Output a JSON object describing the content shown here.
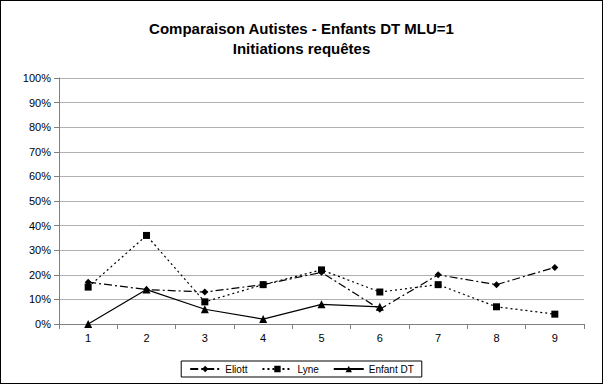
{
  "chart_data": {
    "type": "line",
    "title": "Comparaison Autistes - Enfants DT MLU=1\nInitiations requêtes",
    "categories": [
      "1",
      "2",
      "3",
      "4",
      "5",
      "6",
      "7",
      "8",
      "9"
    ],
    "series": [
      {
        "name": "Eliott",
        "color": "#000000",
        "marker": "diamond",
        "line_style": "dashdot",
        "values": [
          17,
          14,
          13,
          16,
          21,
          6,
          20,
          16,
          23
        ]
      },
      {
        "name": "Lyne",
        "color": "#000000",
        "marker": "square",
        "line_style": "dotted",
        "values": [
          15,
          36,
          9,
          16,
          22,
          13,
          16,
          7,
          4
        ]
      },
      {
        "name": "Enfant DT",
        "color": "#000000",
        "marker": "triangle",
        "line_style": "solid",
        "values": [
          0,
          14,
          6,
          2,
          8,
          7,
          null,
          null,
          null
        ]
      }
    ],
    "ylim": [
      0,
      100
    ],
    "yticks": [
      {
        "value": 0,
        "label": "0%"
      },
      {
        "value": 10,
        "label": "10%"
      },
      {
        "value": 20,
        "label": "20%"
      },
      {
        "value": 30,
        "label": "30%"
      },
      {
        "value": 40,
        "label": "40%"
      },
      {
        "value": 50,
        "label": "50%"
      },
      {
        "value": 60,
        "label": "60%"
      },
      {
        "value": 70,
        "label": "70%"
      },
      {
        "value": 80,
        "label": "80%"
      },
      {
        "value": 90,
        "label": "90%"
      },
      {
        "value": 100,
        "label": "100%"
      }
    ],
    "grid": true,
    "legend": "bottom"
  }
}
